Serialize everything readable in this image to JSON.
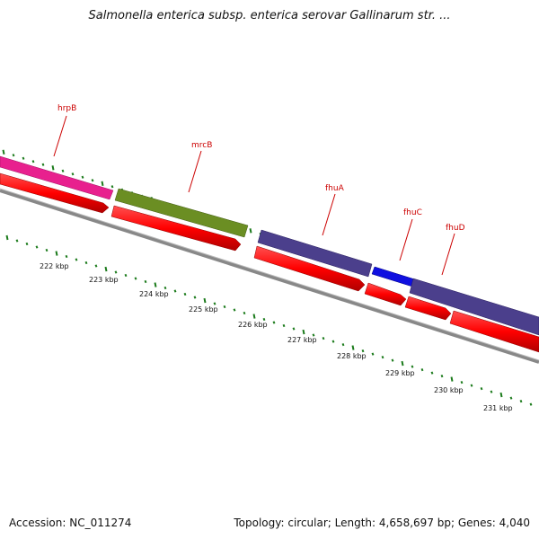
{
  "title": "Salmonella enterica subsp. enterica serovar Gallinarum str. ...",
  "footer": {
    "accession": "Accession: NC_011274",
    "summary": "Topology: circular; Length: 4,658,697 bp; Genes: 4,040"
  },
  "genes": [
    {
      "name": "hrpB",
      "color": "#e8208e"
    },
    {
      "name": "mrcB",
      "color": "#6b8e23"
    },
    {
      "name": "fhuA",
      "color": "#4b3f8c"
    },
    {
      "name": "fhuC",
      "color": "#1010e0"
    },
    {
      "name": "fhuD",
      "color": "#4b3f8c"
    }
  ],
  "kbp_ticks": [
    "222 kbp",
    "223 kbp",
    "224 kbp",
    "225 kbp",
    "226 kbp",
    "227 kbp",
    "228 kbp",
    "229 kbp",
    "230 kbp",
    "231 kbp"
  ],
  "colors": {
    "cds": "#ff0000",
    "backbone": "#888888",
    "tick": "#1a7a1a"
  }
}
